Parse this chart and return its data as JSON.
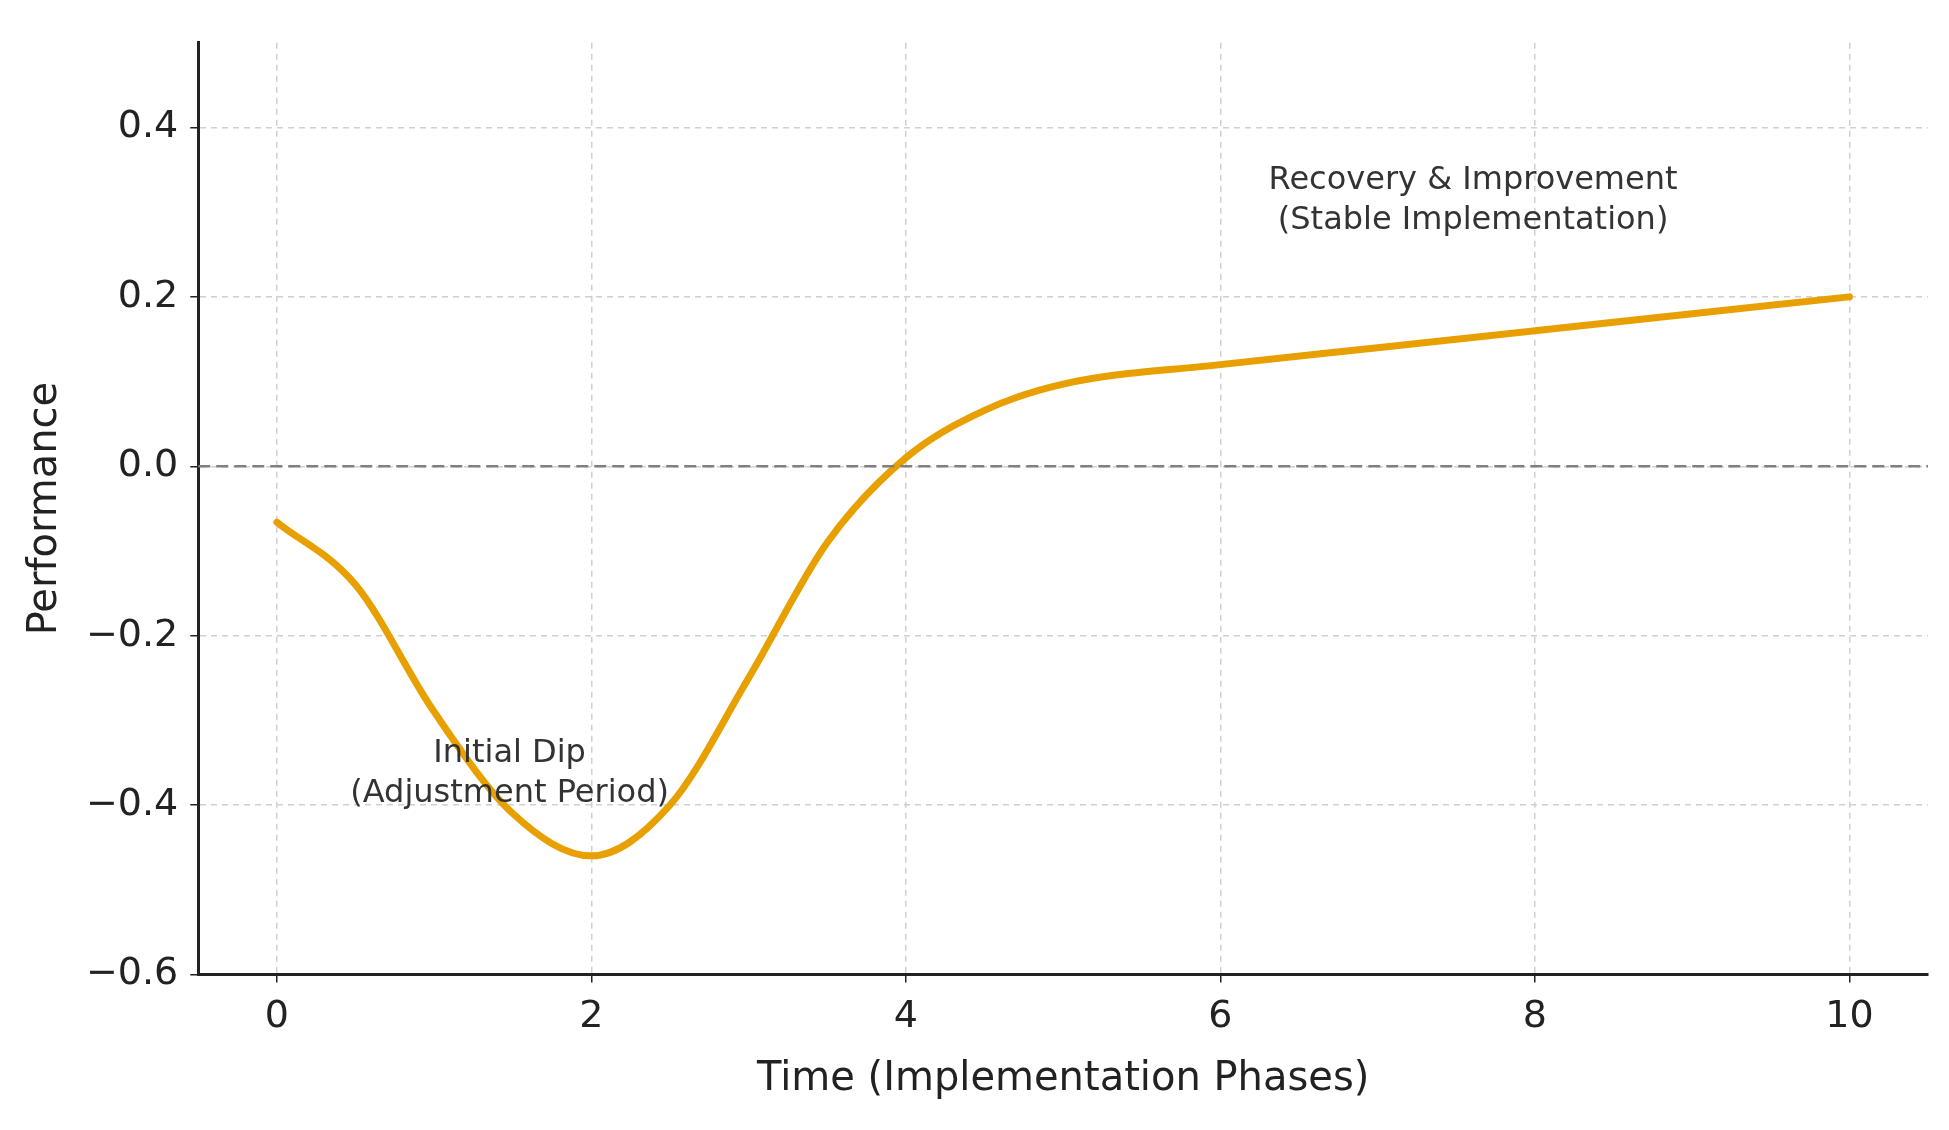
{
  "chart_data": {
    "type": "line",
    "xlabel": "Time (Implementation Phases)",
    "ylabel": "Performance",
    "x": [
      0,
      0.5,
      1,
      1.5,
      2,
      2.5,
      3,
      3.5,
      4,
      4.5,
      5,
      6,
      7,
      8,
      9,
      10
    ],
    "series": [
      {
        "color": "#e8a000",
        "values": [
          -0.066,
          -0.14,
          -0.29,
          -0.41,
          -0.46,
          -0.4,
          -0.25,
          -0.09,
          0.01,
          0.066,
          0.097,
          0.12,
          0.14,
          0.16,
          0.18,
          0.2
        ]
      }
    ],
    "xlim": [
      -0.5,
      10.5
    ],
    "ylim": [
      -0.6,
      0.5
    ],
    "xticks": [
      0,
      2,
      4,
      6,
      8,
      10
    ],
    "yticks": [
      {
        "value": -0.6,
        "label": "−0.6"
      },
      {
        "value": -0.4,
        "label": "−0.4"
      },
      {
        "value": -0.2,
        "label": "−0.2"
      },
      {
        "value": 0,
        "label": "0.0"
      },
      {
        "value": 0.2,
        "label": "0.2"
      },
      {
        "value": 0.4,
        "label": "0.4"
      }
    ],
    "grid": true,
    "legend": false,
    "marker": "none",
    "line_style": "solid",
    "ref_lines": [
      {
        "axis": "y",
        "value": 0,
        "color": "#808080",
        "line_style": "dashed"
      }
    ],
    "annotations": [
      "Initial Dip\n(Adjustment Period)",
      "Recovery & Improvement\n(Stable Implementation)"
    ]
  }
}
